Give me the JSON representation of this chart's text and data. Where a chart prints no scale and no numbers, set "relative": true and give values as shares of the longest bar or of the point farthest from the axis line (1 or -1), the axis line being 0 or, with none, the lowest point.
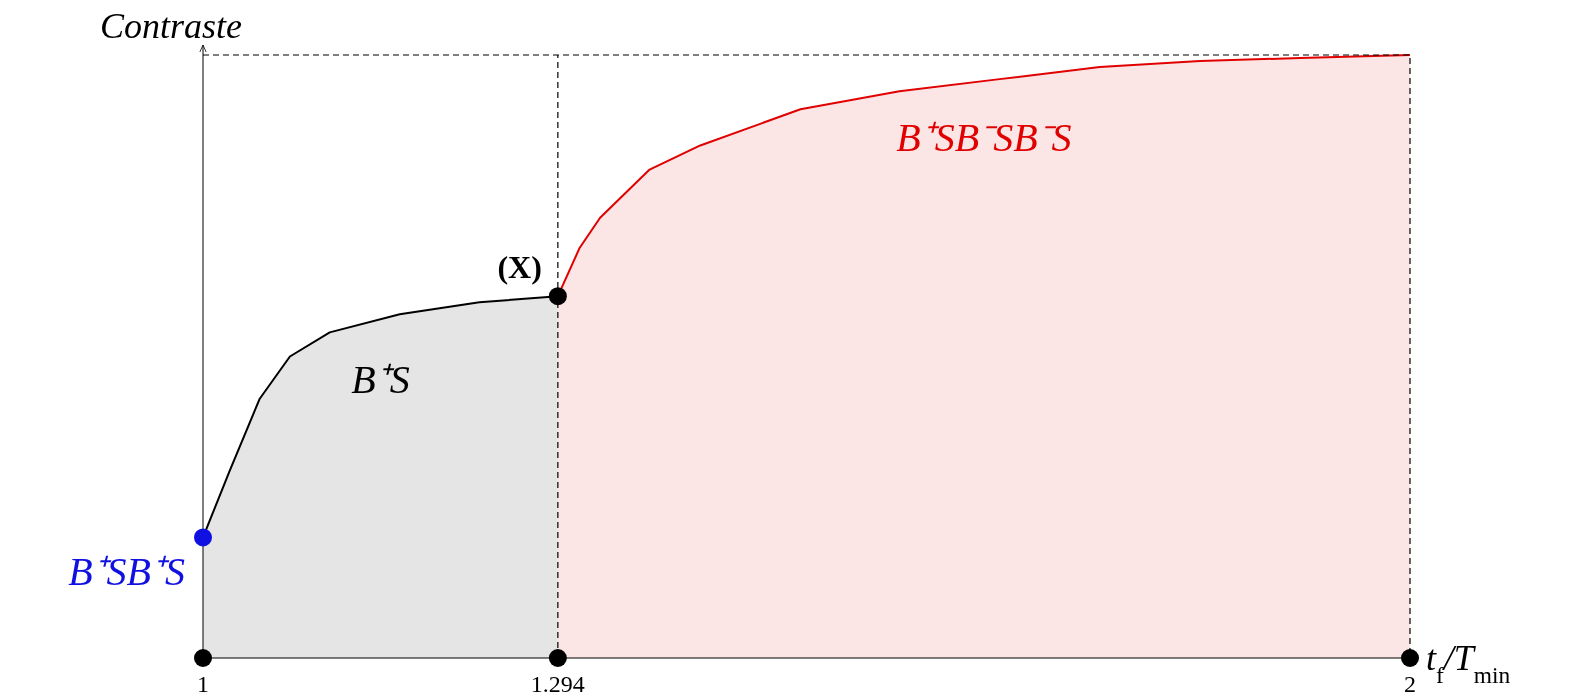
{
  "chart_data": {
    "type": "area",
    "relative": true,
    "xlabel": "t$_{f}$/T$_{min}$",
    "ylabel": "Contraste",
    "xlim": [
      1,
      2
    ],
    "xticks": [
      1,
      1.294,
      2
    ],
    "series": [
      {
        "name": "B⁺S",
        "color": "#000000",
        "x": [
          1,
          1.022,
          1.047,
          1.072,
          1.105,
          1.163,
          1.229,
          1.294
        ],
        "values": [
          0.2,
          0.31,
          0.43,
          0.5,
          0.54,
          0.57,
          0.59,
          0.6
        ]
      },
      {
        "name": "B⁺SB⁻SB⁻S",
        "color": "#e00000",
        "x": [
          1.294,
          1.312,
          1.329,
          1.37,
          1.412,
          1.495,
          1.577,
          1.66,
          1.743,
          1.826,
          1.909,
          2
        ],
        "values": [
          0.6,
          0.68,
          0.73,
          0.81,
          0.85,
          0.91,
          0.94,
          0.96,
          0.98,
          0.99,
          0.995,
          1
        ]
      },
      {
        "type": "scatter",
        "marker": "circle",
        "name": "B⁺SB⁺S",
        "color": "#1010e0",
        "x": [
          1
        ],
        "values": [
          0.2
        ]
      },
      {
        "type": "scatter",
        "marker": "circle",
        "color": "#000000",
        "x": [
          1,
          1.294,
          2,
          1.294
        ],
        "values": [
          0,
          0,
          0,
          0.6
        ]
      }
    ],
    "ref_lines": [
      {
        "axis": "x",
        "value": 1.294,
        "line_style": "dashed",
        "color": "#000000"
      }
    ],
    "annotations": [
      {
        "text": "(X)",
        "x": 1.294,
        "y": 0.6
      }
    ]
  }
}
